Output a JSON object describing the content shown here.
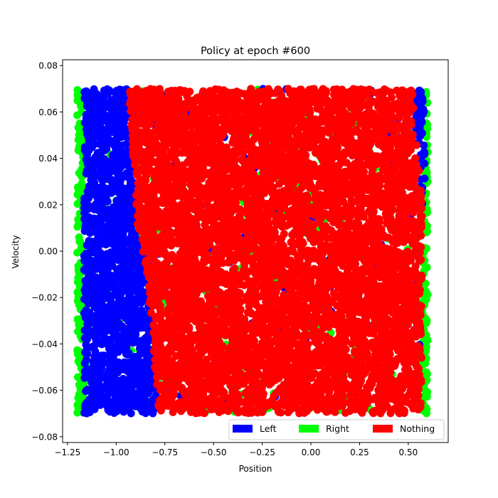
{
  "chart_data": {
    "type": "scatter",
    "title": "Policy at epoch #600",
    "xlabel": "Position",
    "ylabel": "Velocity",
    "xlim": [
      -1.275,
      0.705
    ],
    "ylim": [
      -0.0825,
      0.0825
    ],
    "xticks": [
      -1.25,
      -1.0,
      -0.75,
      -0.5,
      -0.25,
      0.0,
      0.25,
      0.5
    ],
    "xtick_labels": [
      "−1.25",
      "−1.00",
      "−0.75",
      "−0.50",
      "−0.25",
      "0.00",
      "0.25",
      "0.50"
    ],
    "yticks": [
      -0.08,
      -0.06,
      -0.04,
      -0.02,
      0.0,
      0.02,
      0.04,
      0.06,
      0.08
    ],
    "ytick_labels": [
      "−0.08",
      "−0.06",
      "−0.04",
      "−0.02",
      "0.00",
      "0.02",
      "0.04",
      "0.06",
      "0.08"
    ],
    "grid": false,
    "legend_placement": "lower-right",
    "series": [
      {
        "name": "Left",
        "color": "#0000ff"
      },
      {
        "name": "Right",
        "color": "#00ff00"
      },
      {
        "name": "Nothing",
        "color": "#ff0000"
      }
    ],
    "policy_regions": [
      {
        "series": "Right",
        "polygon": [
          [
            -1.2,
            -0.07
          ],
          [
            -1.165,
            -0.07
          ],
          [
            -1.165,
            0.07
          ],
          [
            -1.2,
            0.07
          ]
        ]
      },
      {
        "series": "Left",
        "polygon": [
          [
            -1.165,
            -0.07
          ],
          [
            -0.785,
            -0.07
          ],
          [
            -0.84,
            -0.01
          ],
          [
            -0.89,
            0.01
          ],
          [
            -0.93,
            0.06
          ],
          [
            -0.93,
            0.07
          ],
          [
            -1.165,
            0.07
          ]
        ]
      },
      {
        "series": "Nothing",
        "polygon": [
          [
            -0.785,
            -0.07
          ],
          [
            0.57,
            -0.07
          ],
          [
            0.57,
            0.02
          ],
          [
            0.54,
            0.05
          ],
          [
            0.52,
            0.07
          ],
          [
            -0.93,
            0.07
          ],
          [
            -0.93,
            0.06
          ],
          [
            -0.89,
            0.01
          ],
          [
            -0.84,
            -0.01
          ]
        ]
      },
      {
        "series": "Left",
        "polygon": [
          [
            0.52,
            0.07
          ],
          [
            0.54,
            0.05
          ],
          [
            0.57,
            0.02
          ],
          [
            0.585,
            0.02
          ],
          [
            0.585,
            0.07
          ]
        ]
      },
      {
        "series": "Right",
        "polygon": [
          [
            0.57,
            -0.07
          ],
          [
            0.6,
            -0.07
          ],
          [
            0.6,
            0.07
          ],
          [
            0.585,
            0.07
          ],
          [
            0.585,
            0.02
          ],
          [
            0.57,
            0.02
          ]
        ]
      }
    ],
    "n_points": 9000
  }
}
